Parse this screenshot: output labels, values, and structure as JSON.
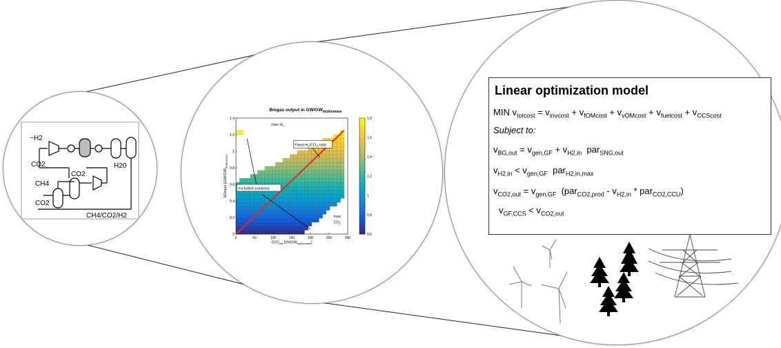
{
  "small_circle": {
    "labels": {
      "h2": "−H2",
      "co2_top": "CO2",
      "co2_mid": "CO2",
      "h2o": "H20",
      "ch4": "CH4",
      "co2_bottom": "CO2",
      "outlet": "CH4/CO2/H2"
    }
  },
  "chart_data": {
    "type": "heatmap",
    "title": "Biogas output in GW/GW",
    "title_sub": "drybiomass",
    "xlabel": "CO2",
    "xlabel_sub": "net",
    "xlabel_rest": " [t/h/GW",
    "xlabel_sub2": "drybiomass",
    "xlabel_end": "]",
    "ylabel": "H2input [GW",
    "ylabel_rest": "/GW",
    "ylabel_sub": "drybiomass",
    "xlim": [
      0,
      300
    ],
    "ylim": [
      0,
      1.4
    ],
    "x_ticks": [
      "0",
      "50",
      "100",
      "150",
      "200",
      "250",
      "300"
    ],
    "y_ticks": [
      "0",
      "0.2",
      "0.4",
      "0.6",
      "0.8",
      "1",
      "1.2",
      "1.4"
    ],
    "colorbar_ticks": [
      "0.6",
      "0.8",
      "1",
      "1.2",
      "1.4",
      "1.6",
      "1.8"
    ],
    "colorbar_range": [
      0.6,
      1.8
    ],
    "fixed_ratio_line": {
      "x": [
        0,
        290
      ],
      "y": [
        0,
        1.25
      ]
    },
    "annotations": {
      "max_h2": "max H",
      "max_h2_sub": "2",
      "fixed_ratio": "Fixed H",
      "fixed_ratio_mid": "/CO",
      "fixed_ratio_end": "-ratio",
      "excluded": "excluded solutions",
      "max_co2": "max",
      "max_co2_2": "CO",
      "max_co2_sub": "2"
    },
    "colors": [
      "#352a87",
      "#0f5cdd",
      "#1481d6",
      "#06a4ca",
      "#2eb7a4",
      "#87bf77",
      "#d1bb59",
      "#fec832",
      "#f9fb0e"
    ]
  },
  "model": {
    "title": "Linear optimization model",
    "min_prefix": "MIN v",
    "subject_to": "Subject to:"
  },
  "colors": {
    "frame": "#8c8c8c",
    "red_line": "#e8281e",
    "icon": "#000000"
  }
}
